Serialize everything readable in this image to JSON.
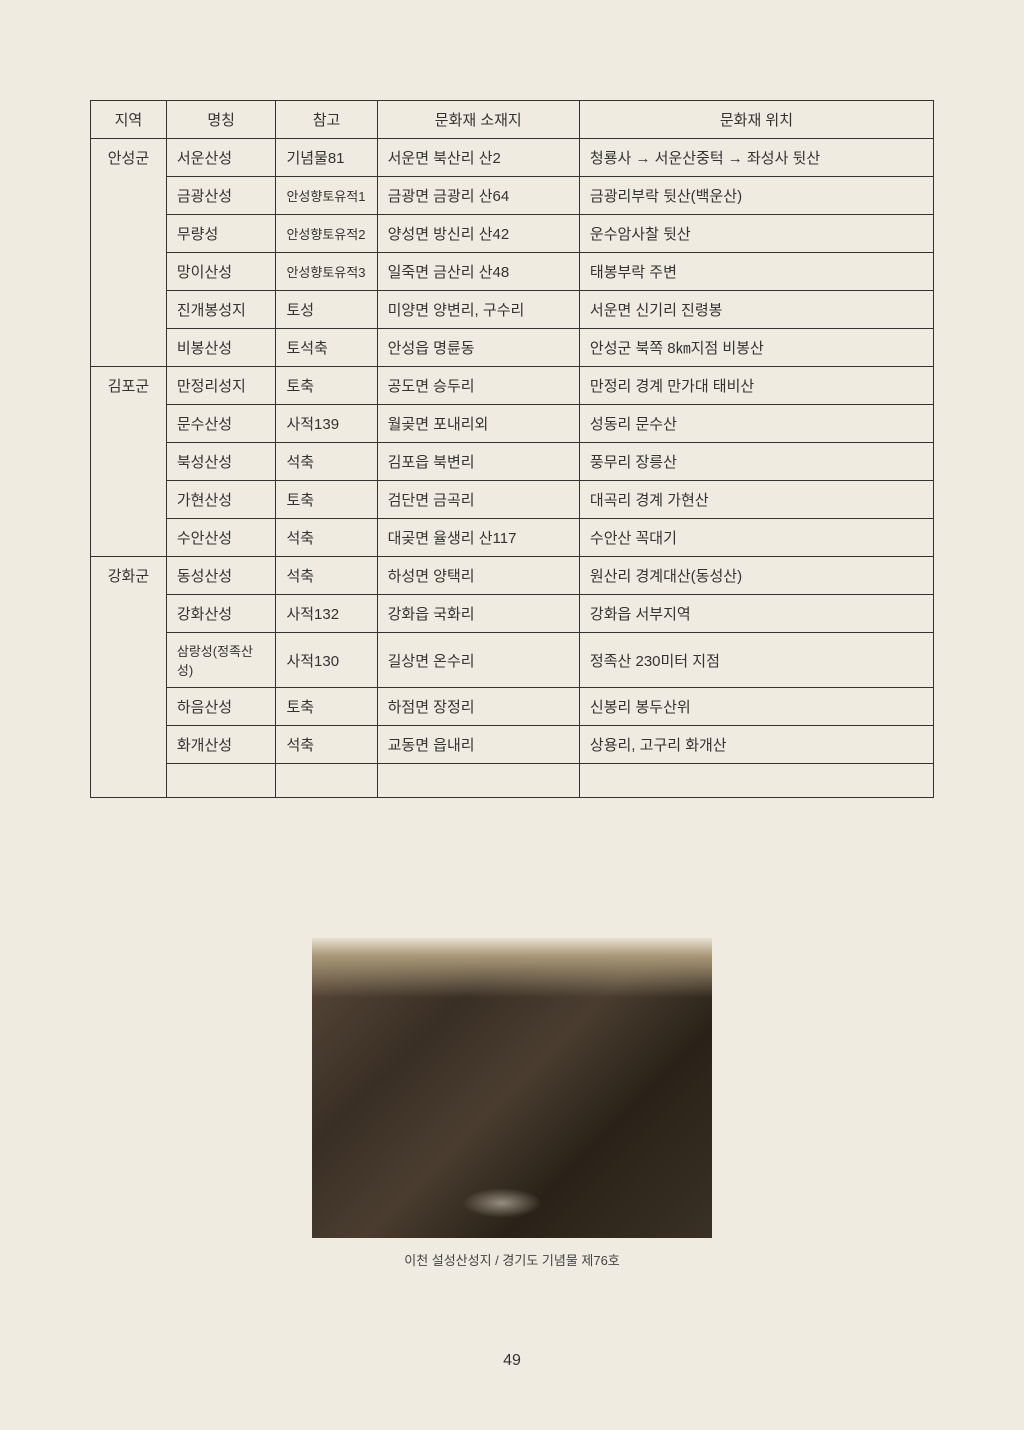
{
  "table": {
    "headers": [
      "지역",
      "명칭",
      "참고",
      "문화재 소재지",
      "문화재 위치"
    ],
    "rows": [
      {
        "region": "안성군",
        "name": "서운산성",
        "ref": "기념물81",
        "loc": "서운면 북산리 산2",
        "pos": "청룡사 → 서운산중턱 → 좌성사 뒷산"
      },
      {
        "region": "",
        "name": "금광산성",
        "ref": "안성향토유적1",
        "ref_small": true,
        "loc": "금광면 금광리 산64",
        "pos": "금광리부락 뒷산(백운산)"
      },
      {
        "region": "",
        "name": "무량성",
        "ref": "안성향토유적2",
        "ref_small": true,
        "loc": "양성면 방신리 산42",
        "pos": "운수암사찰 뒷산"
      },
      {
        "region": "",
        "name": "망이산성",
        "ref": "안성향토유적3",
        "ref_small": true,
        "loc": "일죽면 금산리 산48",
        "pos": "태봉부락 주변"
      },
      {
        "region": "",
        "name": "진개봉성지",
        "ref": "토성",
        "loc": "미양면 양변리, 구수리",
        "pos": "서운면 신기리 진령봉"
      },
      {
        "region": "",
        "name": "비봉산성",
        "ref": "토석축",
        "loc": "안성읍 명륜동",
        "pos": "안성군 북쪽 8㎞지점 비봉산"
      },
      {
        "region": "김포군",
        "name": "만정리성지",
        "ref": "토축",
        "loc": "공도면 승두리",
        "pos": "만정리 경계 만가대 태비산"
      },
      {
        "region": "",
        "name": "문수산성",
        "ref": "사적139",
        "loc": "월곶면 포내리외",
        "pos": "성동리 문수산"
      },
      {
        "region": "",
        "name": "북성산성",
        "ref": "석축",
        "loc": "김포읍 북변리",
        "pos": "풍무리 장릉산"
      },
      {
        "region": "",
        "name": "가현산성",
        "ref": "토축",
        "loc": "검단면 금곡리",
        "pos": "대곡리 경계 가현산"
      },
      {
        "region": "",
        "name": "수안산성",
        "ref": "석축",
        "loc": "대곶면 율생리 산117",
        "pos": "수안산 꼭대기"
      },
      {
        "region": "강화군",
        "name": "동성산성",
        "ref": "석축",
        "loc": "하성면 양택리",
        "pos": "원산리 경계대산(동성산)"
      },
      {
        "region": "",
        "name": "강화산성",
        "ref": "사적132",
        "loc": "강화읍 국화리",
        "pos": "강화읍 서부지역"
      },
      {
        "region": "",
        "name": "삼랑성(정족산성)",
        "name_small": true,
        "ref": "사적130",
        "loc": "길상면 온수리",
        "pos": "정족산 230미터 지점"
      },
      {
        "region": "",
        "name": "하음산성",
        "ref": "토축",
        "loc": "하점면 장정리",
        "pos": "신봉리 봉두산위"
      },
      {
        "region": "",
        "name": "화개산성",
        "ref": "석축",
        "loc": "교동면 읍내리",
        "pos": "상용리, 고구리 화개산"
      },
      {
        "region": "",
        "name": "",
        "ref": "",
        "loc": "",
        "pos": ""
      }
    ],
    "rowspans": [
      {
        "start": 0,
        "span": 6
      },
      {
        "start": 6,
        "span": 5
      },
      {
        "start": 11,
        "span": 6
      }
    ]
  },
  "figure": {
    "caption": "이천 설성산성지 / 경기도 기념물 제76호"
  },
  "page_number": "49"
}
